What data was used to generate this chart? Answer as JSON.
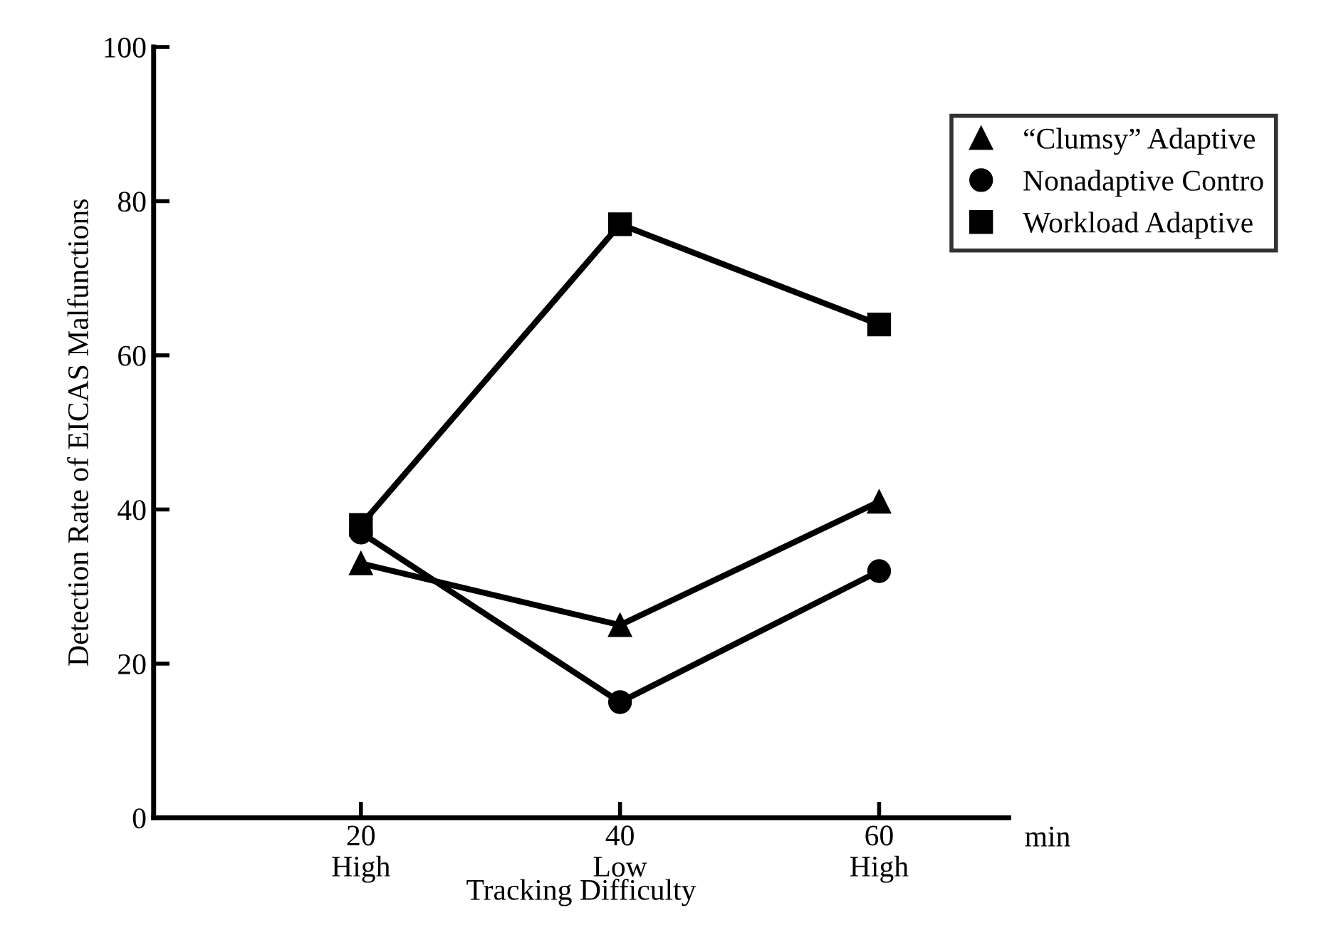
{
  "chart_data": {
    "type": "line",
    "xlabel": "Tracking Difficulty",
    "ylabel": "Detection Rate of EICAS Malfunctions",
    "x": [
      20,
      40,
      60
    ],
    "series": [
      {
        "name": "“Clumsy” Adaptive",
        "color": "#000000",
        "marker": "triangle",
        "values": [
          33,
          25,
          41
        ]
      },
      {
        "name": "Nonadaptive Contro",
        "color": "#000000",
        "marker": "circle",
        "values": [
          37,
          15,
          32
        ]
      },
      {
        "name": "Workload Adaptive",
        "color": "#000000",
        "marker": "square",
        "values": [
          38,
          77,
          64
        ]
      }
    ],
    "xlim": [
      4,
      70
    ],
    "xticks": [
      {
        "value": 20,
        "label": "20\nHigh"
      },
      {
        "value": 40,
        "label": "40\nLow"
      },
      {
        "value": 60,
        "label": "60\nHigh"
      }
    ],
    "ylim": [
      0,
      100
    ],
    "yticks": [
      0,
      20,
      40,
      60,
      80,
      100
    ],
    "annotations": [
      "min"
    ],
    "grid": false,
    "legend": "top right",
    "line_style": "solid"
  }
}
